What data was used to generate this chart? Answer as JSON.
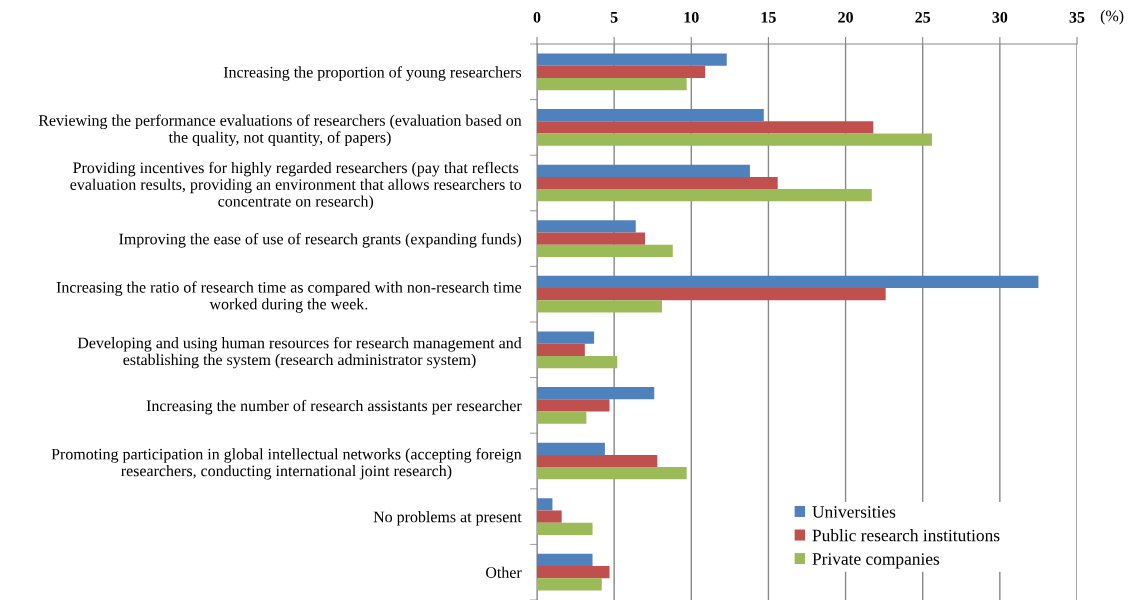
{
  "chart_data": {
    "type": "bar",
    "orientation": "horizontal",
    "xlabel": "(%)",
    "categories": [
      "Increasing the proportion of young researchers",
      "Reviewing the performance evaluations of researchers (evaluation based on\nthe quality, not quantity, of papers)",
      "Providing incentives for highly regarded researchers (pay that reflects\nevaluation results, providing an environment that allows researchers to\nconcentrate on research)",
      "Improving the ease of use of research grants (expanding funds)",
      "Increasing the ratio of research time as compared with non-research time\nworked during the week.",
      "Developing and using human resources for research management and\nestablishing the system (research administrator system)",
      "Increasing the number of research assistants per researcher",
      "Promoting participation in global intellectual networks (accepting foreign\nresearchers, conducting international joint research)",
      "No problems at present",
      "Other"
    ],
    "series": [
      {
        "name": "Universities",
        "color": "#4f81bd",
        "values": [
          12.3,
          14.7,
          13.8,
          6.4,
          32.5,
          3.7,
          7.6,
          4.4,
          1.0,
          3.6
        ]
      },
      {
        "name": "Public research institutions",
        "color": "#c0504d",
        "values": [
          10.9,
          21.8,
          15.6,
          7.0,
          22.6,
          3.1,
          4.7,
          7.8,
          1.6,
          4.7
        ]
      },
      {
        "name": "Private companies",
        "color": "#9bbb59",
        "values": [
          9.7,
          25.6,
          21.7,
          8.8,
          8.1,
          5.2,
          3.2,
          9.7,
          3.6,
          4.2
        ]
      }
    ],
    "xlim": [
      0,
      35
    ],
    "xticks": [
      0,
      5,
      10,
      15,
      20,
      25,
      30,
      35
    ],
    "grid": "x",
    "legend": "bottom right"
  }
}
